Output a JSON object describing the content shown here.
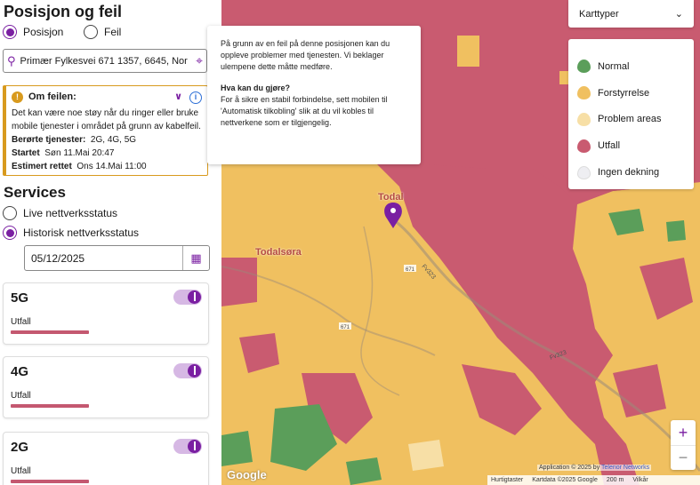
{
  "panel": {
    "title": "Posisjon og feil",
    "radio_position": "Posisjon",
    "radio_fault": "Feil",
    "address": "Primær Fylkesvei 671 1357, 6645, Nor",
    "alert": {
      "title": "Om feilen:",
      "message": "Det kan være noe støy når du ringer eller bruke mobile tjenester i området på grunn av kabelfeil.",
      "services_label": "Berørte tjenester:",
      "services_value": "2G, 4G, 5G",
      "started_label": "Startet",
      "started_value": "Søn 11.Mai 20:47",
      "estimated_label": "Estimert rettet",
      "estimated_value": "Ons 14.Mai 11:00"
    },
    "services_title": "Services",
    "radio_live": "Live nettverksstatus",
    "radio_history": "Historisk nettverksstatus",
    "date": "05/12/2025",
    "cards": [
      {
        "name": "5G",
        "state": "Utfall"
      },
      {
        "name": "4G",
        "state": "Utfall"
      },
      {
        "name": "2G",
        "state": "Utfall"
      }
    ]
  },
  "map": {
    "popup": {
      "text1": "På grunn av en feil på denne posisjonen kan du oppleve problemer med tjenesten. Vi beklager ulempene dette måtte medføre.",
      "question": "Hva kan du gjøre?",
      "text2": "For å sikre en stabil forbindelse, sett mobilen til 'Automatisk tilkobling' slik at du vil kobles til nettverkene som er tilgjengelig."
    },
    "map_type_label": "Karttyper",
    "legend": [
      {
        "label": "Normal",
        "color": "#5b9e5a"
      },
      {
        "label": "Forstyrrelse",
        "color": "#f0c060"
      },
      {
        "label": "Problem areas",
        "color": "#f7dfa6"
      },
      {
        "label": "Utfall",
        "color": "#c95b70"
      },
      {
        "label": "Ingen dekning",
        "color": "#eeeef2"
      }
    ],
    "place_todal": "Todal",
    "place_todalsora": "Todalsøra",
    "road_fv323": "Fv323",
    "road_671": "671",
    "google": "Google",
    "attribution_prefix": "Application © 2025 by",
    "attribution_brand": "Telenor Networks",
    "footer_shortcuts": "Hurtigtaster",
    "footer_mapdata": "Kartdata ©2025 Google",
    "footer_scale": "200 m",
    "footer_terms": "Vilkår"
  }
}
